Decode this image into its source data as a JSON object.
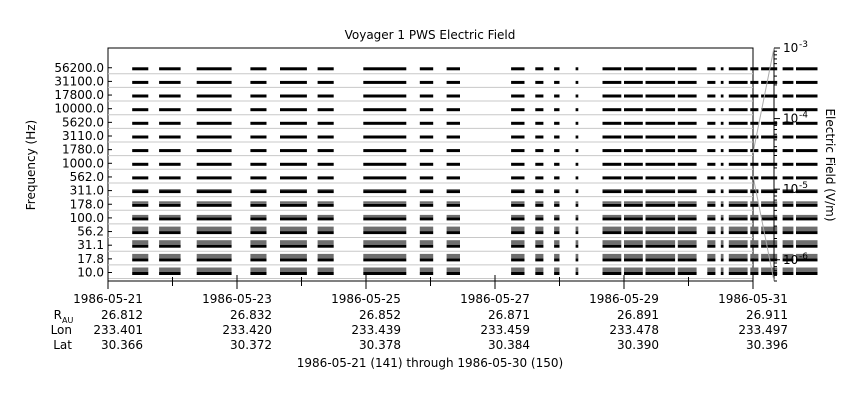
{
  "chart_data": {
    "type": "heatmap",
    "title": "Voyager 1 PWS Electric Field",
    "ylabel": "Frequency (Hz)",
    "colorbar_label": "Electric Field (V/m)",
    "y_tick_labels": [
      "56200.0",
      "31100.0",
      "17800.0",
      "10000.0",
      "5620.0",
      "3110.0",
      "1780.0",
      "1000.0",
      "562.0",
      "311.0",
      "178.0",
      "100.0",
      "56.2",
      "31.1",
      "17.8",
      "10.0"
    ],
    "channels_hz": [
      10.0,
      17.8,
      31.1,
      56.2,
      100.0,
      178.0,
      311.0,
      562.0,
      1000.0,
      1780.0,
      3110.0,
      5620.0,
      10000.0,
      17800.0,
      31100.0,
      56200.0
    ],
    "x_dates": [
      "1986-05-21",
      "1986-05-23",
      "1986-05-25",
      "1986-05-27",
      "1986-05-29",
      "1986-05-31"
    ],
    "x_range_days": [
      "1986-05-21",
      "1986-05-31"
    ],
    "ephemeris": {
      "rows": [
        {
          "label": "R",
          "sub": "AU",
          "values": [
            "26.812",
            "26.832",
            "26.852",
            "26.871",
            "26.891",
            "26.911"
          ]
        },
        {
          "label": "Lon",
          "sub": "",
          "values": [
            "233.401",
            "233.420",
            "233.439",
            "233.459",
            "233.478",
            "233.497"
          ]
        },
        {
          "label": "Lat",
          "sub": "",
          "values": [
            "30.366",
            "30.372",
            "30.378",
            "30.384",
            "30.390",
            "30.396"
          ]
        }
      ]
    },
    "colorbar": {
      "scale": "log",
      "range": [
        5e-07,
        0.001
      ],
      "ticks": [
        {
          "mantissa": "10",
          "exp": "-3",
          "value": 0.001
        },
        {
          "mantissa": "10",
          "exp": "-4",
          "value": 0.0001
        },
        {
          "mantissa": "10",
          "exp": "-5",
          "value": 1e-05
        },
        {
          "mantissa": "10",
          "exp": "-6",
          "value": 1e-06
        }
      ]
    },
    "data_segments": [
      {
        "start": "1986-05-21T09:00",
        "end": "1986-05-21T15:00"
      },
      {
        "start": "1986-05-21T19:00",
        "end": "1986-05-22T03:00"
      },
      {
        "start": "1986-05-22T09:00",
        "end": "1986-05-22T22:00"
      },
      {
        "start": "1986-05-23T05:00",
        "end": "1986-05-23T11:00"
      },
      {
        "start": "1986-05-23T16:00",
        "end": "1986-05-24T02:00"
      },
      {
        "start": "1986-05-24T06:00",
        "end": "1986-05-24T12:00"
      },
      {
        "start": "1986-05-24T23:00",
        "end": "1986-05-25T15:00"
      },
      {
        "start": "1986-05-25T20:00",
        "end": "1986-05-26T01:00"
      },
      {
        "start": "1986-05-26T06:00",
        "end": "1986-05-26T11:00"
      },
      {
        "start": "1986-05-27T06:00",
        "end": "1986-05-27T11:00"
      },
      {
        "start": "1986-05-27T15:00",
        "end": "1986-05-27T18:00"
      },
      {
        "start": "1986-05-27T22:00",
        "end": "1986-05-28T00:00"
      },
      {
        "start": "1986-05-28T06:00",
        "end": "1986-05-28T07:00"
      },
      {
        "start": "1986-05-28T16:00",
        "end": "1986-05-28T23:00"
      },
      {
        "start": "1986-05-29T00:00",
        "end": "1986-05-29T07:00"
      },
      {
        "start": "1986-05-29T08:00",
        "end": "1986-05-29T19:00"
      },
      {
        "start": "1986-05-29T20:00",
        "end": "1986-05-30T03:00"
      },
      {
        "start": "1986-05-30T07:00",
        "end": "1986-05-30T10:00"
      },
      {
        "start": "1986-05-30T12:00",
        "end": "1986-05-30T13:00"
      },
      {
        "start": "1986-05-30T15:00",
        "end": "1986-05-30T22:00"
      },
      {
        "start": "1986-05-30T23:00",
        "end": "1986-05-31T02:00"
      },
      {
        "start": "1986-05-31T03:00",
        "end": "1986-05-31T09:00"
      },
      {
        "start": "1986-05-31T11:00",
        "end": "1986-05-31T15:00"
      },
      {
        "start": "1986-05-31T16:00",
        "end": "1986-05-31T23:59"
      }
    ],
    "grid": true
  },
  "footer": {
    "range_text": "1986-05-21 (141) through 1986-05-30 (150)"
  }
}
